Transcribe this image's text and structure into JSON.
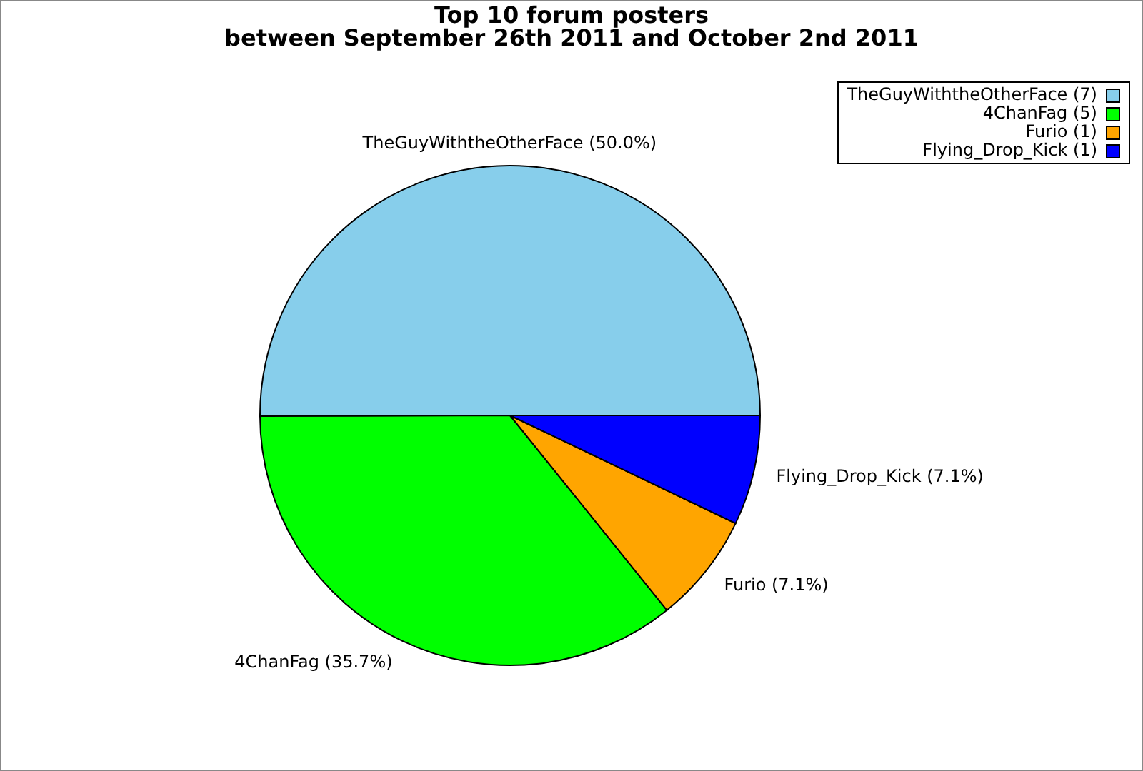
{
  "chart_data": {
    "type": "pie",
    "title": "Top 10 forum posters",
    "subtitle": "between September 26th 2011 and October 2nd 2011",
    "categories": [
      "TheGuyWiththeOtherFace (7)",
      "4ChanFag (5)",
      "Furio (1)",
      "Flying_Drop_Kick (1)"
    ],
    "values": [
      50.0,
      35.7,
      7.1,
      7.1
    ],
    "colors": [
      "#87ceeb",
      "#00ff00",
      "#ffa500",
      "#0000ff"
    ],
    "value_labels": [
      "TheGuyWiththeOtherFace (50.0%)",
      "4ChanFag (35.7%)",
      "Furio (7.1%)",
      "Flying_Drop_Kick (7.1%)"
    ],
    "legend": "top right"
  }
}
